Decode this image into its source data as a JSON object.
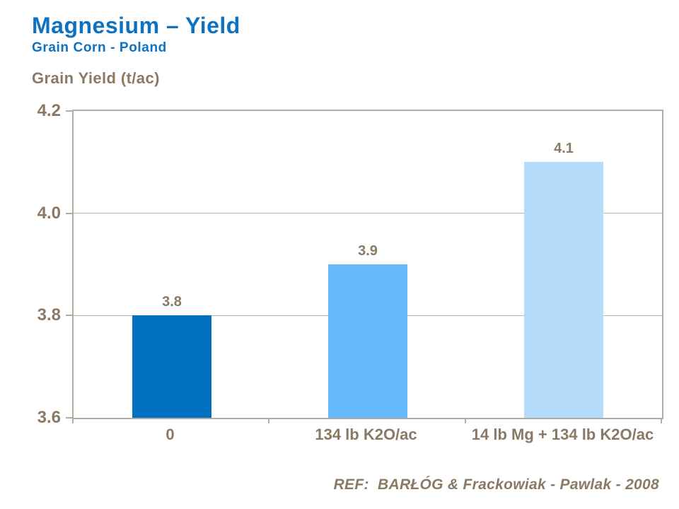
{
  "header": {
    "title": "Magnesium – Yield",
    "subtitle": "Grain Corn - Poland"
  },
  "axis_title": "Grain Yield (t/ac)",
  "reference": "REF:  BARŁÓG & Frackowiak - Pawlak - 2008",
  "colors": {
    "title_blue": "#0e72c3",
    "text_taupe": "#8a7a64",
    "plot_border": "#b5ab9e",
    "gridline": "#bdb3a4",
    "bar_colors": [
      "#0070c0",
      "#66b9fb",
      "#b6dcfc"
    ]
  },
  "chart_data": {
    "type": "bar",
    "title": "Magnesium – Yield",
    "subtitle": "Grain Corn - Poland",
    "ylabel": "Grain Yield (t/ac)",
    "categories": [
      "0",
      "134 lb K2O/ac",
      "14 lb Mg + 134 lb K2O/ac"
    ],
    "values": [
      3.8,
      3.9,
      4.1
    ],
    "value_labels": [
      "3.8",
      "3.9",
      "4.1"
    ],
    "bar_colors": [
      "#0070c0",
      "#66b9fb",
      "#b6dcfc"
    ],
    "ylim": [
      3.6,
      4.2
    ],
    "yticks": [
      "3.6",
      "3.8",
      "4.0",
      "4.2"
    ],
    "grid": "horizontal",
    "legend": "none",
    "annotation": "REF:  BARŁÓG & Frackowiak - Pawlak - 2008"
  }
}
